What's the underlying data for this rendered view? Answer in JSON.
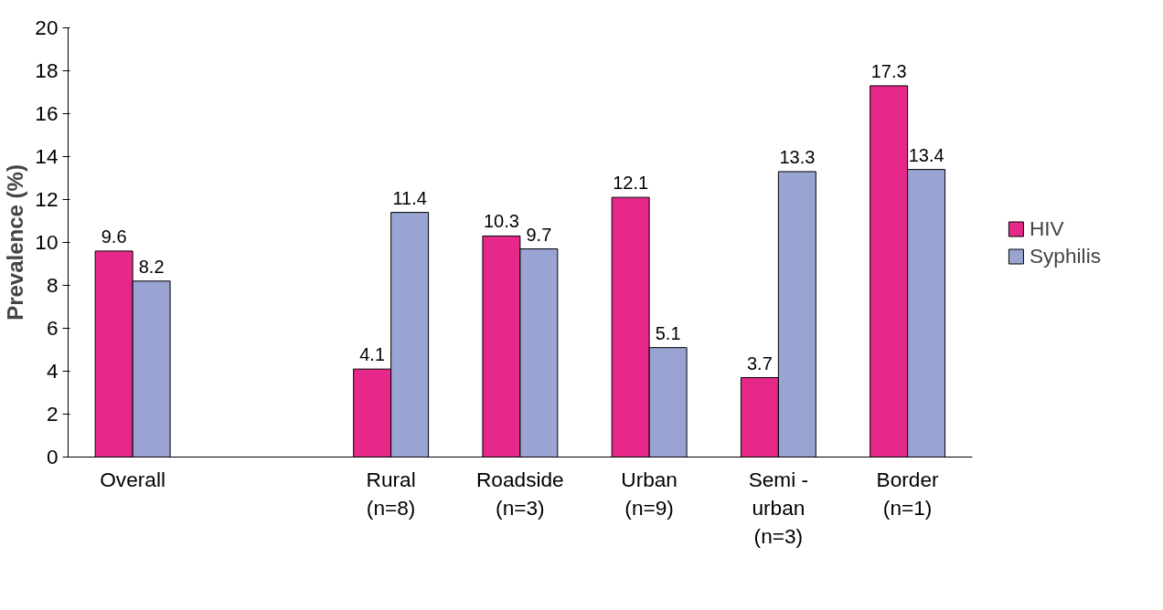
{
  "chart_data": {
    "type": "bar",
    "ylabel": "Prevalence (%)",
    "categories": [
      "Overall",
      null,
      "Rural\n(n=8)",
      "Roadside\n(n=3)",
      "Urban\n(n=9)",
      "Semi -\nurban\n(n=3)",
      "Border\n(n=1)"
    ],
    "series": [
      {
        "name": "HIV",
        "color": "#e6288a",
        "values": [
          9.6,
          null,
          4.1,
          10.3,
          12.1,
          3.7,
          17.3
        ]
      },
      {
        "name": "Syphilis",
        "color": "#99a4d2",
        "values": [
          8.2,
          null,
          11.4,
          9.7,
          5.1,
          13.3,
          13.4
        ]
      }
    ],
    "ylim": [
      0,
      20
    ],
    "yticks": [
      0,
      2,
      4,
      6,
      8,
      10,
      12,
      14,
      16,
      18,
      20
    ],
    "data_labels": true,
    "grid": false,
    "legend": "right"
  }
}
